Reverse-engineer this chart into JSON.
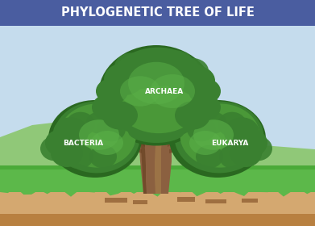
{
  "title": "PHYLOGENETIC TREE OF LIFE",
  "title_bg": "#4a5da0",
  "title_color": "#ffffff",
  "title_fontsize": 10.5,
  "bg_sky": "#c5dced",
  "hill_left_color": "#8dc87a",
  "hill_right_color": "#9dd88a",
  "ground_color": "#5cb84a",
  "ground_dark": "#4aaa38",
  "dirt_color": "#d4a870",
  "dirt_dark": "#b88040",
  "root_color": "#7a4a20",
  "trunk_main": "#8b6040",
  "trunk_light": "#a07848",
  "trunk_dark": "#5a3818",
  "branch_color": "#7a5030",
  "foliage_dark": "#2a6820",
  "foliage_mid": "#3a8030",
  "foliage_main": "#4a9838",
  "foliage_light": "#5ab048",
  "foliage_highlight": "#6ac058",
  "label_archaea": "ARCHAEA",
  "label_bacteria": "BACTERIA",
  "label_eukarya": "EUKARYA",
  "label_color": "#ffffff",
  "label_fontsize": 6.5,
  "label_fontweight": "bold"
}
